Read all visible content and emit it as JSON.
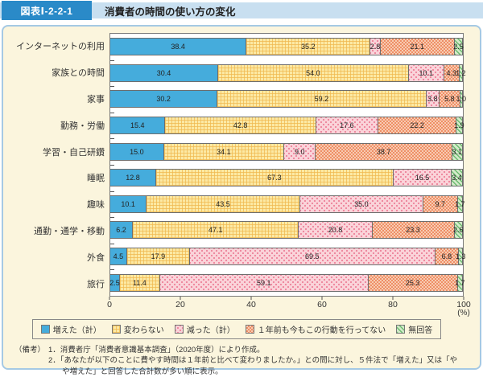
{
  "header": {
    "figure_label": "図表Ⅰ-2-2-1",
    "title": "消費者の時間の使い方の変化"
  },
  "chart_data": {
    "type": "bar",
    "orientation": "horizontal",
    "stacked": true,
    "xlim": [
      0,
      100
    ],
    "x_ticks": [
      0,
      20,
      40,
      60,
      80,
      100
    ],
    "x_unit": "(%)",
    "grid": false,
    "legend_position": "bottom",
    "categories": [
      "インターネットの利用",
      "家族との時間",
      "家事",
      "勤務・労働",
      "学習・自己研鑽",
      "睡眠",
      "趣味",
      "通勤・通学・移動",
      "外食",
      "旅行"
    ],
    "series": [
      {
        "name": "増えた（計）",
        "pattern": "solid-blue",
        "color": "#45acdc",
        "values": [
          38.4,
          30.4,
          30.2,
          15.4,
          15.0,
          12.8,
          10.1,
          6.2,
          4.5,
          2.5
        ]
      },
      {
        "name": "変わらない",
        "pattern": "yellow-gingham",
        "color": "#fce9a4",
        "values": [
          35.2,
          54.0,
          59.2,
          42.8,
          34.1,
          67.3,
          43.5,
          47.1,
          17.9,
          11.4
        ]
      },
      {
        "name": "減った（計）",
        "pattern": "pink-dots",
        "color": "#fad4da",
        "values": [
          2.8,
          10.1,
          3.8,
          17.6,
          9.0,
          16.5,
          35.0,
          20.8,
          69.5,
          59.1
        ]
      },
      {
        "name": "１年前も今もこの行動を行ってない",
        "pattern": "orange-checker",
        "color": "#f8cbb2",
        "values": [
          21.1,
          4.3,
          5.8,
          22.2,
          38.7,
          0,
          9.7,
          23.3,
          6.8,
          25.3
        ]
      },
      {
        "name": "無回答",
        "pattern": "green-diagonal",
        "color": "#d4eaca",
        "values": [
          2.5,
          1.2,
          1.0,
          1.9,
          3.1,
          3.4,
          1.7,
          2.6,
          1.3,
          1.7
        ]
      }
    ]
  },
  "footnotes": {
    "prefix": "（備考）",
    "notes": [
      "1．消費者庁「消費者意識基本調査」（2020年度）により作成。",
      "2．「あなたが以下のことに費やす時間は１年前と比べて変わりましたか。」との問に対し、５件法で「増えた」又は「やや増えた」と回答した合計数が多い順に表示。"
    ]
  },
  "colors": {
    "header_band": "#c8dff0",
    "figure_label_bg": "#2a8ac8",
    "panel_bg": "#fbf5dd",
    "panel_border": "#a5c9e4"
  }
}
